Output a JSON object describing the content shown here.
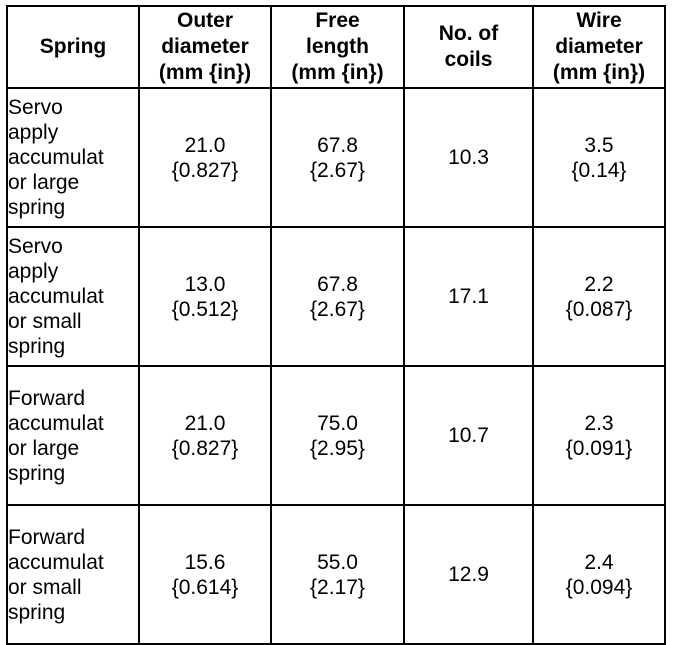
{
  "table": {
    "headers": [
      "Spring",
      "Outer\ndiameter\n(mm {in})",
      "Free\nlength\n(mm {in})",
      "No. of\ncoils",
      "Wire\ndiameter\n(mm {in})"
    ],
    "rows": [
      {
        "spring": "Servo\napply\naccumulat\nor large\nspring",
        "outer_diameter": "21.0\n{0.827}",
        "free_length": "67.8\n{2.67}",
        "coils": "10.3",
        "wire_diameter": "3.5\n{0.14}"
      },
      {
        "spring": "Servo\napply\naccumulat\nor small\nspring",
        "outer_diameter": "13.0\n{0.512}",
        "free_length": "67.8\n{2.67}",
        "coils": "17.1",
        "wire_diameter": "2.2\n{0.087}"
      },
      {
        "spring": "Forward\naccumulat\nor large\nspring",
        "outer_diameter": "21.0\n{0.827}",
        "free_length": "75.0\n{2.95}",
        "coils": "10.7",
        "wire_diameter": "2.3\n{0.091}"
      },
      {
        "spring": "Forward\naccumulat\nor small\nspring",
        "outer_diameter": "15.6\n{0.614}",
        "free_length": "55.0\n{2.17}",
        "coils": "12.9",
        "wire_diameter": "2.4\n{0.094}"
      }
    ]
  }
}
